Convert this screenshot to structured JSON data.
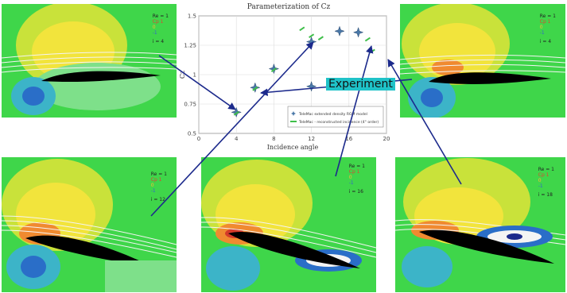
{
  "colors": {
    "background": "#3fd64a",
    "airfoil": "#000000",
    "streamline": "#f4f4f4",
    "arrow": "#1c2a8c",
    "experiment_marker": "#4a78a8",
    "model_marker": "#3fbf4a"
  },
  "chart": {
    "title": "Parameterization of Cz",
    "xlabel": "Incidence angle",
    "ylabel": "Cz",
    "legend_model_1": "TeleMac extended density ROM model",
    "legend_model_2": "TeleMac - reconstructed incidence (4° order)",
    "experiment_label": "Experiment"
  },
  "panels": [
    {
      "id": "top-left",
      "legend_lines": [
        "Re = 1",
        "Cp 1",
        "0",
        "-1"
      ],
      "angle_label": "i = 4"
    },
    {
      "id": "top-right",
      "legend_lines": [
        "Re = 1",
        "Cp 1",
        "0",
        "-1"
      ],
      "angle_label": "i = 4"
    },
    {
      "id": "bottom-left",
      "legend_lines": [
        "Re = 1",
        "Cp 1",
        "0",
        "-1"
      ],
      "angle_label": "i = 12"
    },
    {
      "id": "bottom-center",
      "legend_lines": [
        "Re = 1",
        "Cp 1",
        "0",
        "-1"
      ],
      "angle_label": "i = 16"
    },
    {
      "id": "bottom-right",
      "legend_lines": [
        "Re = 1",
        "Cp 1",
        "0",
        "-1"
      ],
      "angle_label": "i = 18"
    }
  ],
  "chart_data": {
    "type": "scatter",
    "title": "Parameterization of Cz",
    "xlabel": "Incidence angle",
    "ylabel": "Cz",
    "xlim": [
      0,
      20
    ],
    "ylim": [
      0.5,
      1.5
    ],
    "xticks": [
      "0",
      "4",
      "8",
      "12",
      "16",
      "20"
    ],
    "yticks": [
      "0.5",
      "0.75",
      "1",
      "1.25",
      "1.5"
    ],
    "grid": true,
    "legend_position": "bottom-right",
    "series": [
      {
        "name": "TeleMac extended density ROM model",
        "marker": "star",
        "x": [
          4,
          6,
          8,
          12,
          12,
          15,
          17
        ],
        "y": [
          0.68,
          0.89,
          1.05,
          0.9,
          1.28,
          1.37,
          1.36
        ]
      },
      {
        "name": "TeleMac - reconstructed incidence (4° order)",
        "marker": "dash",
        "x": [
          4,
          6,
          8,
          11,
          12,
          13,
          18,
          18.5
        ],
        "y": [
          0.67,
          0.88,
          1.04,
          1.39,
          1.33,
          1.31,
          1.3,
          1.2
        ]
      }
    ]
  }
}
